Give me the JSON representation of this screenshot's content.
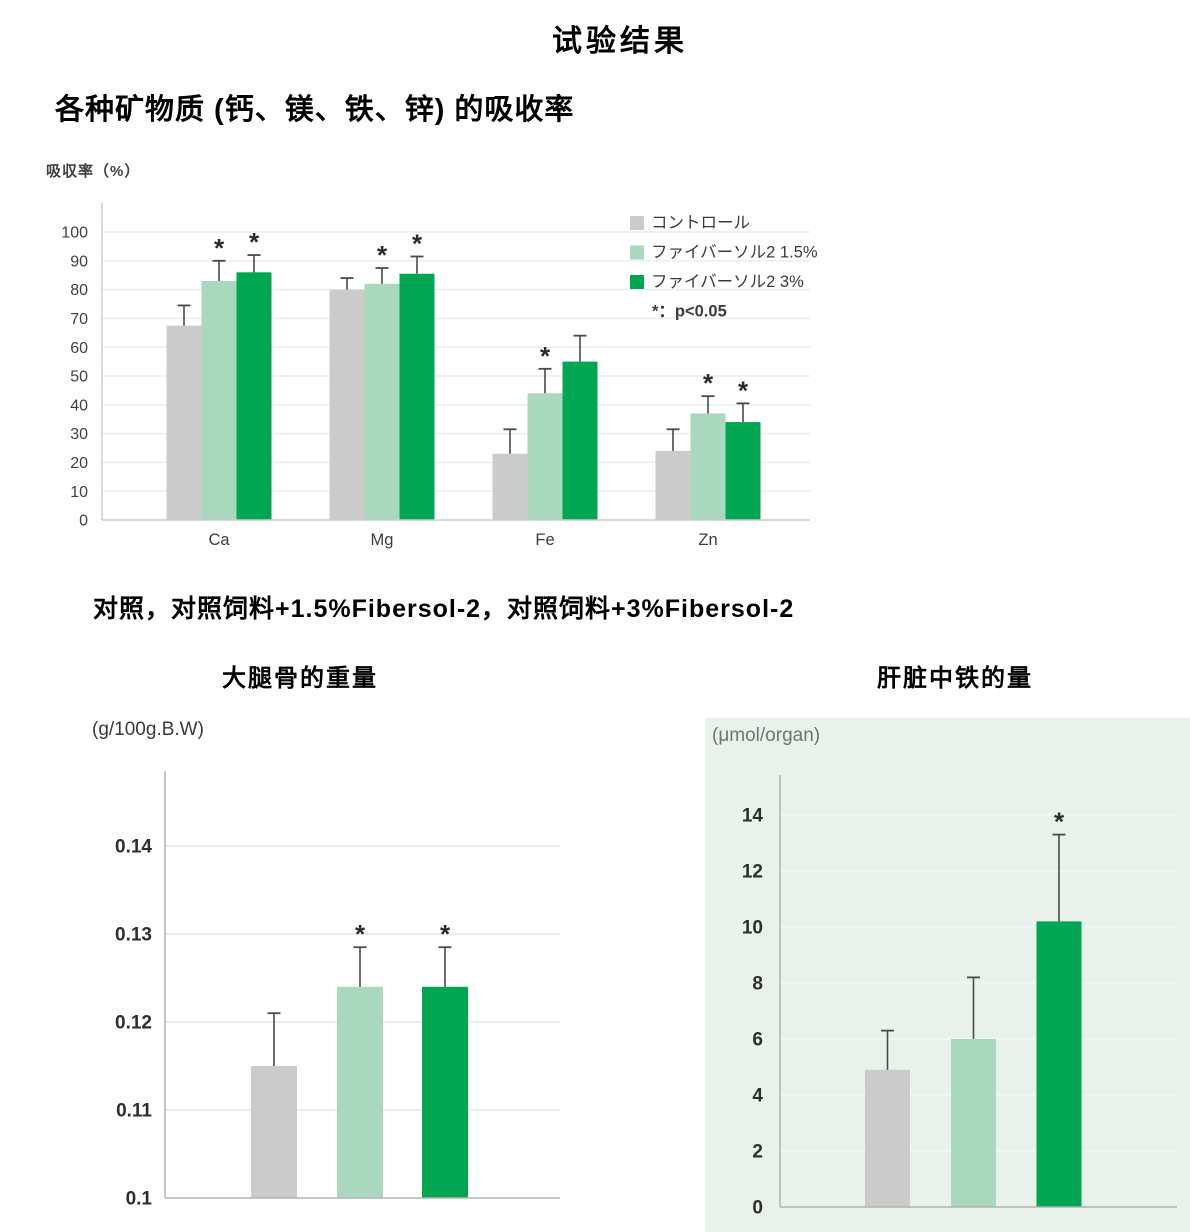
{
  "page": {
    "title": "试验结果",
    "subtitle": "各种矿物质 (钙、镁、铁、锌) 的吸收率",
    "caption": "对照，对照饲料+1.5%Fibersol-2，对照饲料+3%Fibersol-2"
  },
  "colors": {
    "series": [
      "#cbcbcb",
      "#a9d8be",
      "#00a651"
    ],
    "star": "#2b2b2b",
    "error_bar": "#4a4a4a",
    "liver_panel_bg": "#e8f2ea"
  },
  "chart_data": [
    {
      "id": "absorption",
      "type": "bar",
      "title": "各种矿物质 (钙、镁、铁、锌) 的吸收率",
      "ylabel": "吸収率（%）",
      "ylim": [
        0,
        110
      ],
      "yticks": [
        0,
        10,
        20,
        30,
        40,
        50,
        60,
        70,
        80,
        90,
        100
      ],
      "ytick_labels": [
        "0",
        "10",
        "20",
        "30",
        "40",
        "50",
        "60",
        "70",
        "80",
        "90",
        "100"
      ],
      "categories": [
        "Ca",
        "Mg",
        "Fe",
        "Zn"
      ],
      "grid": true,
      "legend_position": "top-right",
      "legend_note": "*：p<0.05",
      "series": [
        {
          "name": "コントロール",
          "values": [
            67.5,
            80,
            23,
            24
          ],
          "errors": [
            7,
            4,
            8.5,
            7.5
          ],
          "sig": [
            false,
            false,
            false,
            false
          ]
        },
        {
          "name": "ファイバーソル2 1.5%",
          "values": [
            83,
            82,
            44,
            37
          ],
          "errors": [
            7,
            5.5,
            8.5,
            6
          ],
          "sig": [
            true,
            true,
            true,
            true
          ]
        },
        {
          "name": "ファイバーソル2 3%",
          "values": [
            86,
            85.5,
            55,
            34
          ],
          "errors": [
            6,
            6,
            9,
            6.5
          ],
          "sig": [
            true,
            true,
            false,
            true
          ]
        }
      ]
    },
    {
      "id": "femur",
      "type": "bar",
      "title": "大腿骨的重量",
      "unit": "(g/100g.B.W)",
      "ylim": [
        0.1,
        0.1485
      ],
      "yticks": [
        0.1,
        0.11,
        0.12,
        0.13,
        0.14
      ],
      "ytick_labels": [
        "0.1",
        "0.11",
        "0.12",
        "0.13",
        "0.14"
      ],
      "categories": [
        ""
      ],
      "grid": true,
      "series": [
        {
          "name": "コントロール",
          "values": [
            0.115
          ],
          "errors": [
            0.006
          ],
          "sig": [
            false
          ]
        },
        {
          "name": "ファイバーソル2 1.5%",
          "values": [
            0.124
          ],
          "errors": [
            0.0045
          ],
          "sig": [
            true
          ]
        },
        {
          "name": "ファイバーソル2 3%",
          "values": [
            0.124
          ],
          "errors": [
            0.0045
          ],
          "sig": [
            true
          ]
        }
      ]
    },
    {
      "id": "liver",
      "type": "bar",
      "title": "肝脏中铁的量",
      "unit": "(μmol/organ)",
      "ylim": [
        0,
        15.4
      ],
      "yticks": [
        0,
        2,
        4,
        6,
        8,
        10,
        12,
        14
      ],
      "ytick_labels": [
        "0",
        "2",
        "4",
        "6",
        "8",
        "10",
        "12",
        "14"
      ],
      "categories": [
        ""
      ],
      "grid": true,
      "series": [
        {
          "name": "コントロール",
          "values": [
            4.9
          ],
          "errors": [
            1.4
          ],
          "sig": [
            false
          ]
        },
        {
          "name": "ファイバーソル2 1.5%",
          "values": [
            6.0
          ],
          "errors": [
            2.2
          ],
          "sig": [
            false
          ]
        },
        {
          "name": "ファイバーソル2 3%",
          "values": [
            10.2
          ],
          "errors": [
            3.1
          ],
          "sig": [
            true
          ]
        }
      ]
    }
  ]
}
